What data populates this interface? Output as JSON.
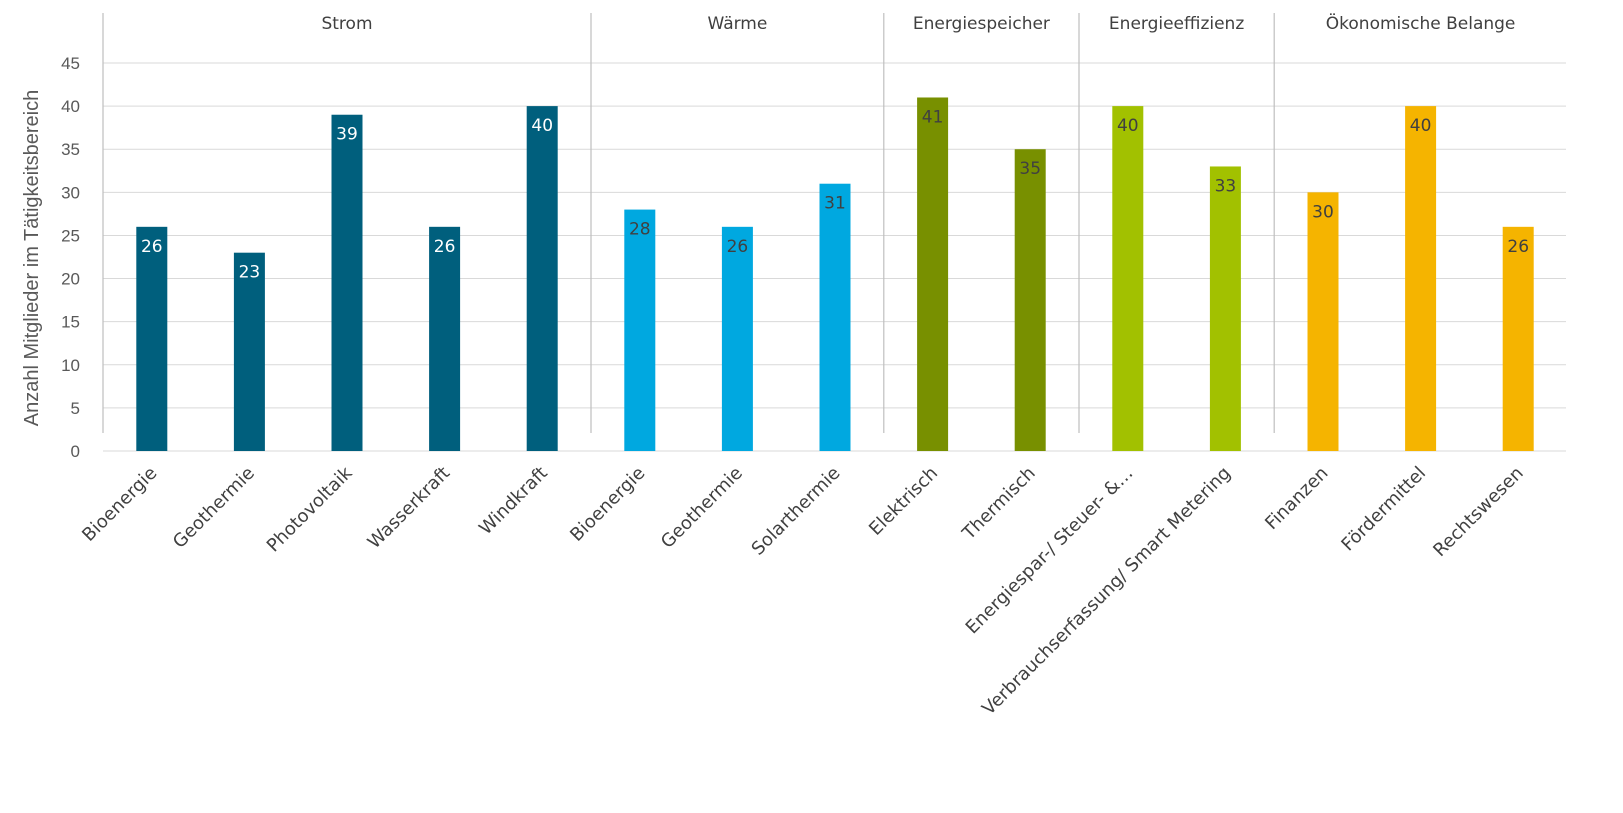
{
  "chart_data": {
    "type": "bar",
    "title": "",
    "ylabel": "Anzahl  Mitglieder im Tätigkeitsbereich",
    "ylim": [
      0,
      45
    ],
    "yticks": [
      0,
      5,
      10,
      15,
      20,
      25,
      30,
      35,
      40,
      45
    ],
    "grid": true,
    "groups": [
      {
        "name": "Strom",
        "color": "#005f7d",
        "label_color": "#ffffff",
        "categories": [
          "Bioenergie",
          "Geothermie",
          "Photovoltaik",
          "Wasserkraft",
          "Windkraft"
        ],
        "values": [
          26,
          23,
          39,
          26,
          40
        ]
      },
      {
        "name": "Wärme",
        "color": "#00a8e0",
        "label_color": "#404040",
        "categories": [
          "Bioenergie",
          "Geothermie",
          "Solarthermie"
        ],
        "values": [
          28,
          26,
          31
        ]
      },
      {
        "name": "Energiespeicher",
        "color": "#789000",
        "label_color": "#404040",
        "categories": [
          "Elektrisch",
          "Thermisch"
        ],
        "values": [
          41,
          35
        ]
      },
      {
        "name": "Energieeffizienz",
        "color": "#a2c100",
        "label_color": "#404040",
        "categories": [
          "Energiespar-/ Steuer- &…",
          "Verbrauchserfassung/ Smart Metering"
        ],
        "values": [
          40,
          33
        ]
      },
      {
        "name": "Ökonomische Belange",
        "color": "#f5b400",
        "label_color": "#404040",
        "categories": [
          "Finanzen",
          "Fördermittel",
          "Rechtswesen"
        ],
        "values": [
          30,
          40,
          26
        ]
      }
    ]
  }
}
